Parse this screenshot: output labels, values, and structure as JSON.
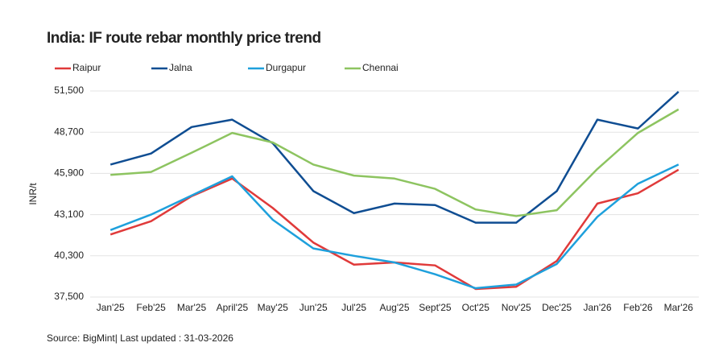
{
  "chart_data": {
    "type": "line",
    "title": "India: IF route rebar monthly price trend",
    "y_label": "INR/t",
    "source": "Source: BigMint| Last updated : 31-03-2026",
    "categories": [
      "Jan'25",
      "Feb'25",
      "Mar'25",
      "April'25",
      "May'25",
      "Jun'25",
      "Jul'25",
      "Aug'25",
      "Sept'25",
      "Oct'25",
      "Nov'25",
      "Dec'25",
      "Jan'26",
      "Feb'26",
      "Mar'26"
    ],
    "series": [
      {
        "name": "Raipur",
        "color": "#e03a3a",
        "values": [
          41750,
          42650,
          44350,
          45550,
          43550,
          41200,
          39700,
          39850,
          39650,
          38050,
          38200,
          39950,
          43850,
          44550,
          46150
        ]
      },
      {
        "name": "Jalna",
        "color": "#0f4d92",
        "values": [
          46500,
          47250,
          49050,
          49550,
          47950,
          44700,
          43200,
          43850,
          43750,
          42550,
          42550,
          44700,
          49550,
          48950,
          51450
        ]
      },
      {
        "name": "Durgapur",
        "color": "#1ea0dc",
        "values": [
          42050,
          43100,
          44400,
          45700,
          42750,
          40800,
          40300,
          39850,
          39050,
          38100,
          38350,
          39750,
          42950,
          45200,
          46500
        ]
      },
      {
        "name": "Chennai",
        "color": "#8dc460",
        "values": [
          45800,
          46000,
          47300,
          48650,
          48000,
          46500,
          45750,
          45550,
          44850,
          43450,
          43000,
          43400,
          46200,
          48650,
          50250
        ]
      }
    ],
    "ylim": [
      37500,
      51500
    ],
    "yticks": [
      {
        "value": 37500,
        "label": "37,500"
      },
      {
        "value": 40300,
        "label": "40,300"
      },
      {
        "value": 43100,
        "label": "43,100"
      },
      {
        "value": 45900,
        "label": "45,900"
      },
      {
        "value": 48700,
        "label": "48,700"
      },
      {
        "value": 51500,
        "label": "51,500"
      }
    ],
    "grid": true,
    "legend": "top"
  }
}
